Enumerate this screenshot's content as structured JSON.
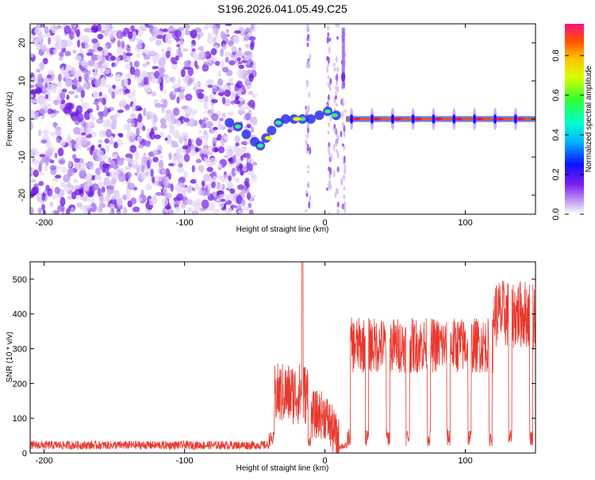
{
  "title": "S196.2026.041.05.49.C25",
  "chart_data": [
    {
      "type": "heatmap",
      "xlabel": "Height of straight line (km)",
      "ylabel": "Frequency (Hz)",
      "xlim": [
        -210,
        150
      ],
      "ylim": [
        -25,
        25
      ],
      "xticks": [
        -200,
        -100,
        0,
        100
      ],
      "xtick_labels": [
        "-200",
        "-100",
        "0",
        "100"
      ],
      "yticks": [
        -20,
        -10,
        0,
        10,
        20
      ],
      "ytick_labels": [
        "-20",
        "-10",
        "0",
        "10",
        "20"
      ],
      "colorbar": {
        "label": "Normalized spectral amplitude",
        "range": [
          0,
          0.96
        ],
        "ticks": [
          0,
          0.2,
          0.4,
          0.6,
          0.8
        ],
        "tick_labels": [
          "0.0",
          "0.2",
          "0.4",
          "0.6",
          "0.8"
        ]
      },
      "features": {
        "noise_region_km": [
          -210,
          -50
        ],
        "transition_region_km": [
          -50,
          15
        ],
        "steady_line_freq_hz": 0,
        "steady_line_start_km": 15,
        "burst_interval_km": 14.6
      }
    },
    {
      "type": "line",
      "xlabel": "Height of straight line (km)",
      "ylabel": "SNR (10 * v/v)",
      "xlim": [
        -210,
        150
      ],
      "ylim": [
        0,
        550
      ],
      "xticks": [
        -200,
        -100,
        0,
        100
      ],
      "xtick_labels": [
        "-200",
        "-100",
        "0",
        "100"
      ],
      "yticks": [
        0,
        100,
        200,
        300,
        400,
        500
      ],
      "ytick_labels": [
        "0",
        "100",
        "200",
        "300",
        "400",
        "500"
      ],
      "color": "#e8392f",
      "segments": [
        {
          "x_from": -210,
          "x_to": -40,
          "level": 18,
          "note": "noise floor"
        },
        {
          "x_from": -38,
          "x_to": -12,
          "level": 180,
          "peak_x": -16,
          "peak": 550
        },
        {
          "x_from": -10,
          "x_to": 10,
          "level": 110
        },
        {
          "x_from": 17,
          "x_to": 120,
          "level": 300,
          "dips_to": 40
        },
        {
          "x_from": 120,
          "x_to": 150,
          "level": 380,
          "peak": 500
        }
      ],
      "dip_positions_km": [
        17,
        30,
        45,
        59,
        74,
        88,
        103,
        118,
        132,
        147
      ]
    }
  ]
}
